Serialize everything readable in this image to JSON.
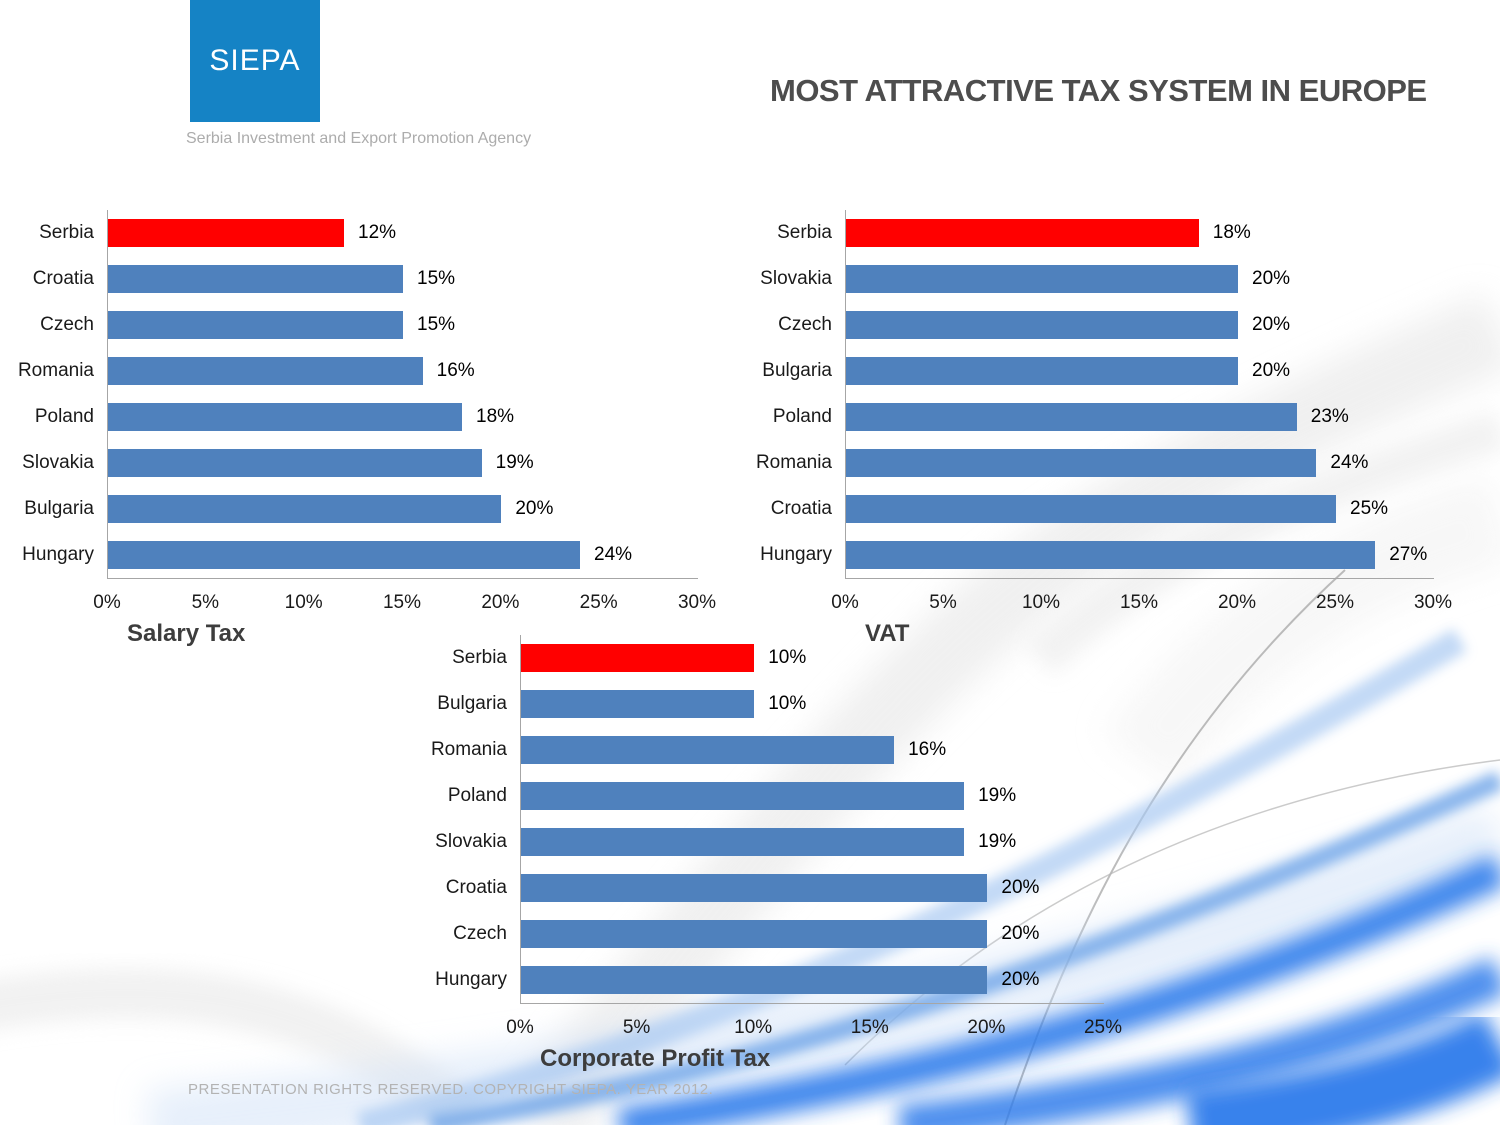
{
  "header": {
    "logo_text": "SIEPA",
    "logo_subtitle": "Serbia Investment and Export Promotion Agency",
    "title": "MOST ATTRACTIVE TAX SYSTEM IN EUROPE"
  },
  "footer": {
    "copyright": "PRESENTATION RIGHTS RESERVED. COPYRIGHT SIEPA. YEAR 2012."
  },
  "colors": {
    "bar_blue": "#4F81BD",
    "bar_red": "#FF0000",
    "logo_blue": "#1583C5",
    "axis_gray": "#A6A6A6",
    "swoosh_blue": "#2E7CEB"
  },
  "chart_data": [
    {
      "type": "bar",
      "orientation": "horizontal",
      "title": "Salary Tax",
      "categories": [
        "Serbia",
        "Croatia",
        "Czech",
        "Romania",
        "Poland",
        "Slovakia",
        "Bulgaria",
        "Hungary"
      ],
      "values": [
        12,
        15,
        15,
        16,
        18,
        19,
        20,
        24
      ],
      "value_labels": [
        "12%",
        "15%",
        "15%",
        "16%",
        "18%",
        "19%",
        "20%",
        "24%"
      ],
      "highlight_index": 0,
      "highlight_category": "Serbia",
      "xlim": [
        0,
        30
      ],
      "ticks": [
        "0%",
        "5%",
        "10%",
        "15%",
        "20%",
        "25%",
        "30%"
      ],
      "grid": false,
      "legend": "none"
    },
    {
      "type": "bar",
      "orientation": "horizontal",
      "title": "VAT",
      "categories": [
        "Serbia",
        "Slovakia",
        "Czech",
        "Bulgaria",
        "Poland",
        "Romania",
        "Croatia",
        "Hungary"
      ],
      "values": [
        18,
        20,
        20,
        20,
        23,
        24,
        25,
        27
      ],
      "value_labels": [
        "18%",
        "20%",
        "20%",
        "20%",
        "23%",
        "24%",
        "25%",
        "27%"
      ],
      "highlight_index": 0,
      "highlight_category": "Serbia",
      "xlim": [
        0,
        30
      ],
      "ticks": [
        "0%",
        "5%",
        "10%",
        "15%",
        "20%",
        "25%",
        "30%"
      ],
      "grid": false,
      "legend": "none"
    },
    {
      "type": "bar",
      "orientation": "horizontal",
      "title": "Corporate Profit Tax",
      "categories": [
        "Serbia",
        "Bulgaria",
        "Romania",
        "Poland",
        "Slovakia",
        "Croatia",
        "Czech",
        "Hungary"
      ],
      "values": [
        10,
        10,
        16,
        19,
        19,
        20,
        20,
        20
      ],
      "value_labels": [
        "10%",
        "10%",
        "16%",
        "19%",
        "19%",
        "20%",
        "20%",
        "20%"
      ],
      "highlight_index": 0,
      "highlight_category": "Serbia",
      "xlim": [
        0,
        25
      ],
      "ticks": [
        "0%",
        "5%",
        "10%",
        "15%",
        "20%",
        "25%"
      ],
      "grid": false,
      "legend": "none"
    }
  ]
}
